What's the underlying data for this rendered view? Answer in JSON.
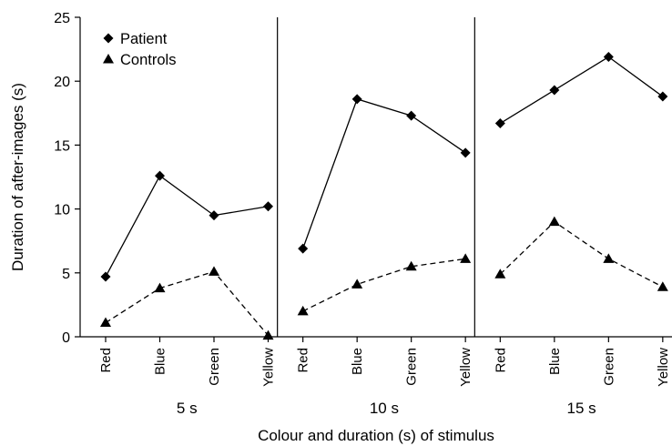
{
  "chart_data": {
    "type": "line",
    "xlabel": "Colour and duration (s) of stimulus",
    "ylabel": "Duration of after-images (s)",
    "ylim": [
      0,
      25
    ],
    "yticks": [
      0,
      5,
      10,
      15,
      20,
      25
    ],
    "groups": [
      "5 s",
      "10 s",
      "15 s"
    ],
    "categories": [
      "Red",
      "Blue",
      "Green",
      "Yellow"
    ],
    "legend": {
      "position": "top-left"
    },
    "series": [
      {
        "name": "Patient",
        "marker": "diamond",
        "line": "solid",
        "values": [
          [
            4.7,
            12.6,
            9.5,
            10.2
          ],
          [
            6.9,
            18.6,
            17.3,
            14.4
          ],
          [
            16.7,
            19.3,
            21.9,
            18.8
          ]
        ]
      },
      {
        "name": "Controls",
        "marker": "triangle",
        "line": "dashed",
        "values": [
          [
            1.1,
            3.8,
            5.1,
            0.1
          ],
          [
            2.0,
            4.1,
            5.5,
            6.1
          ],
          [
            4.9,
            9.0,
            6.1,
            3.9
          ]
        ]
      }
    ]
  }
}
